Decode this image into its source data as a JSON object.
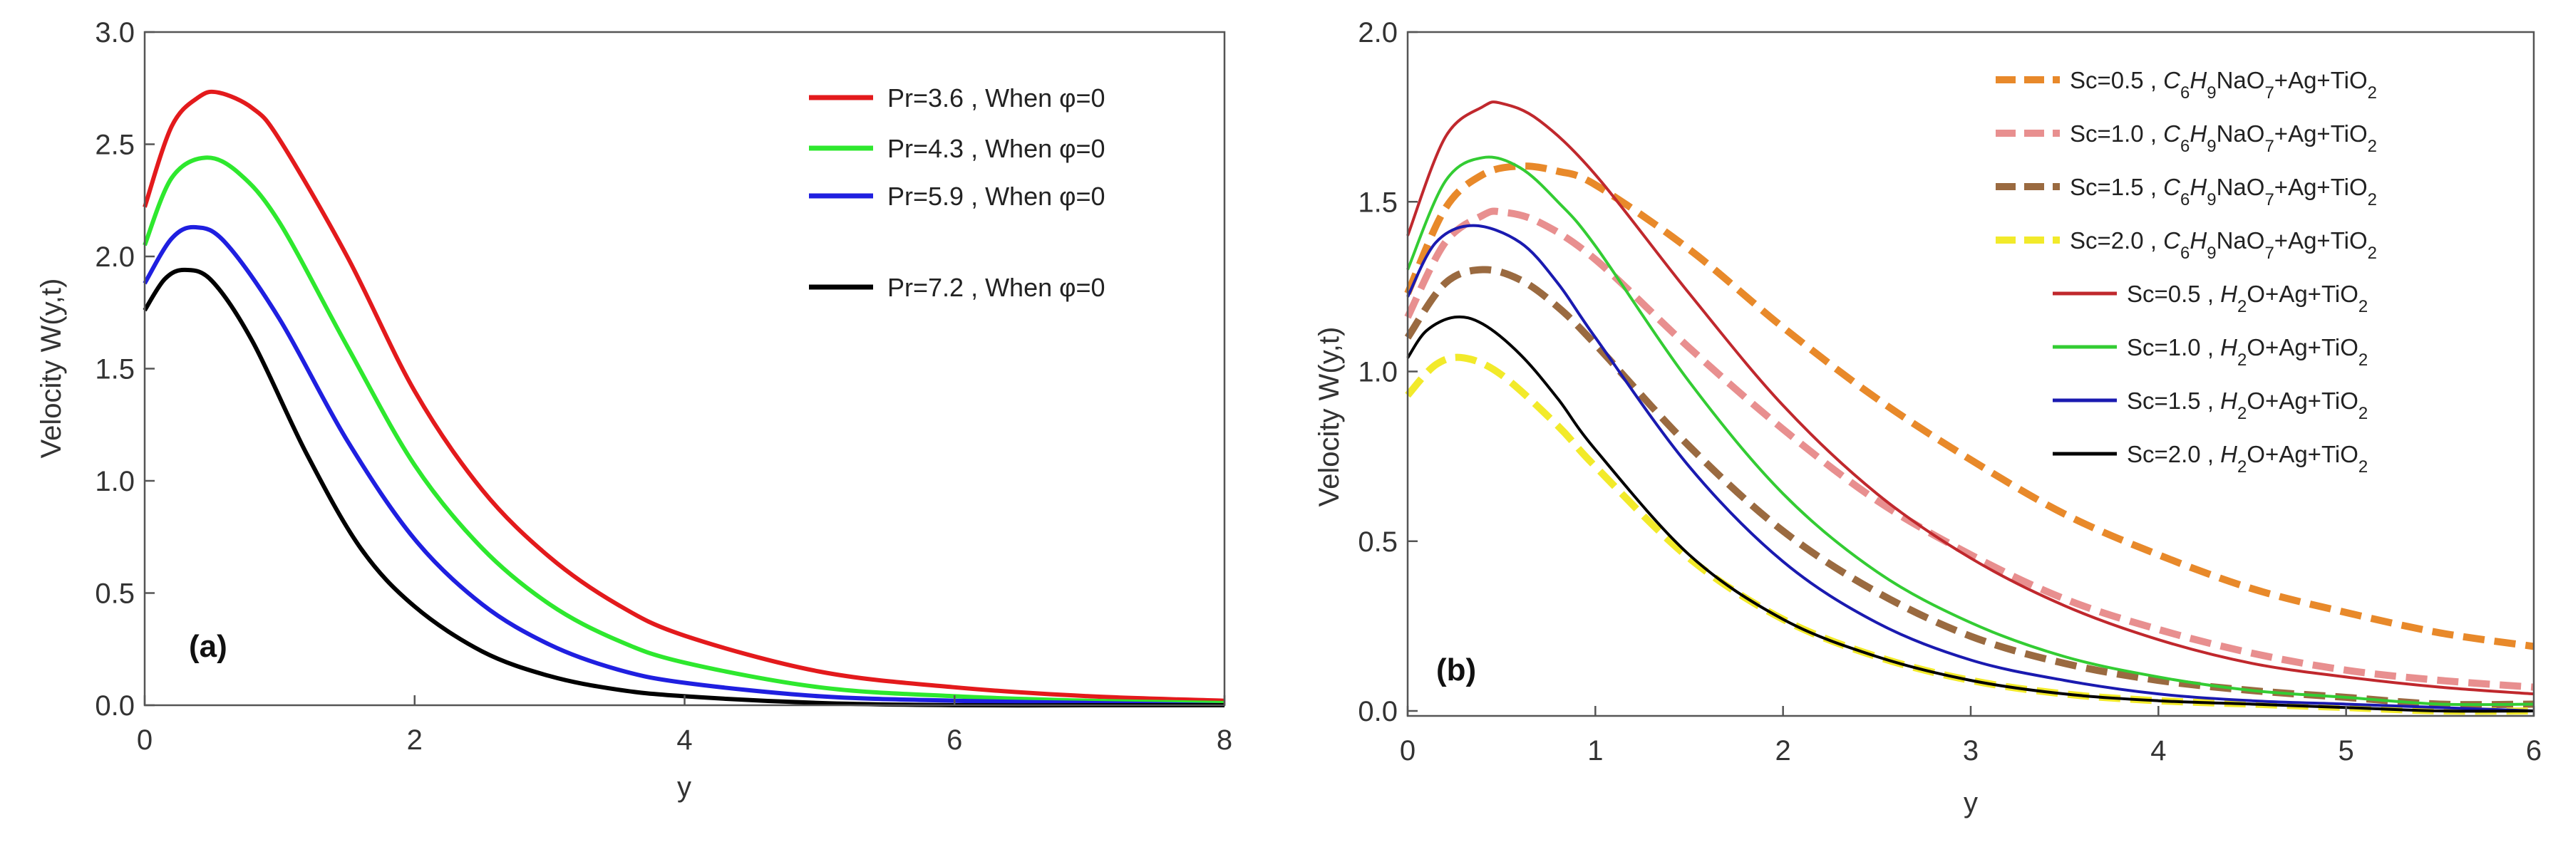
{
  "chart_data": [
    {
      "type": "line",
      "panel_label": "(a)",
      "xlabel": "y",
      "ylabel": "Velocity W(y,t)",
      "xlim": [
        0,
        8
      ],
      "ylim": [
        0,
        3
      ],
      "x_ticks": [
        "0",
        "2",
        "4",
        "6",
        "8"
      ],
      "y_ticks": [
        "0.0",
        "0.5",
        "1.0",
        "1.5",
        "2.0",
        "2.5",
        "3.0"
      ],
      "legend_position": "top-right",
      "series": [
        {
          "name": "Pr=3.6 , When φ=0",
          "color": "#e31a1c",
          "dashed": false,
          "x": [
            0,
            0.2,
            0.4,
            0.55,
            0.8,
            1.0,
            1.5,
            2.0,
            2.5,
            3.0,
            3.5,
            4.0,
            5.0,
            6.0,
            7.0,
            8.0
          ],
          "y": [
            2.22,
            2.58,
            2.71,
            2.73,
            2.66,
            2.52,
            2.0,
            1.4,
            0.96,
            0.66,
            0.45,
            0.31,
            0.15,
            0.08,
            0.04,
            0.02
          ]
        },
        {
          "name": "Pr=4.3 , When φ=0",
          "color": "#2ee82e",
          "dashed": false,
          "x": [
            0,
            0.2,
            0.45,
            0.7,
            1.0,
            1.5,
            2.0,
            2.5,
            3.0,
            3.5,
            4.0,
            5.0,
            6.0,
            7.0,
            8.0
          ],
          "y": [
            2.05,
            2.35,
            2.44,
            2.37,
            2.15,
            1.6,
            1.07,
            0.7,
            0.45,
            0.29,
            0.19,
            0.08,
            0.04,
            0.02,
            0.01
          ]
        },
        {
          "name": "Pr=5.9 , When φ=0",
          "color": "#1f1fe0",
          "dashed": false,
          "x": [
            0,
            0.2,
            0.38,
            0.6,
            1.0,
            1.5,
            2.0,
            2.5,
            3.0,
            3.5,
            4.0,
            5.0,
            6.0,
            7.0,
            8.0
          ],
          "y": [
            1.88,
            2.08,
            2.13,
            2.06,
            1.72,
            1.18,
            0.74,
            0.45,
            0.27,
            0.16,
            0.1,
            0.04,
            0.02,
            0.01,
            0.0
          ]
        },
        {
          "name": "Pr=7.2 , When φ=0",
          "color": "#000000",
          "dashed": false,
          "x": [
            0,
            0.15,
            0.3,
            0.5,
            0.8,
            1.2,
            1.6,
            2.0,
            2.5,
            3.0,
            3.5,
            4.0,
            5.0,
            6.0,
            7.0,
            8.0
          ],
          "y": [
            1.76,
            1.9,
            1.94,
            1.89,
            1.62,
            1.12,
            0.7,
            0.44,
            0.24,
            0.13,
            0.07,
            0.04,
            0.01,
            0.0,
            0.0,
            0.0
          ]
        }
      ]
    },
    {
      "type": "line",
      "panel_label": "(b)",
      "xlabel": "y",
      "ylabel": "Velocity W(y,t)",
      "xlim": [
        0,
        6
      ],
      "ylim": [
        0,
        2
      ],
      "x_ticks": [
        "0",
        "1",
        "2",
        "3",
        "4",
        "5",
        "6"
      ],
      "y_ticks": [
        "0.0",
        "0.5",
        "1.0",
        "1.5",
        "2.0"
      ],
      "legend_position": "top-right",
      "series": [
        {
          "name_prefix": "Sc=0.5 , ",
          "fluid": "C6H9NaO7+Ag+TiO2",
          "color": "#e8892a",
          "dashed": true,
          "x": [
            0,
            0.2,
            0.4,
            0.6,
            0.8,
            1.0,
            1.5,
            2.0,
            2.5,
            3.0,
            3.5,
            4.0,
            4.5,
            5.0,
            5.5,
            6.0
          ],
          "y": [
            1.23,
            1.48,
            1.58,
            1.605,
            1.59,
            1.55,
            1.36,
            1.13,
            0.92,
            0.74,
            0.58,
            0.46,
            0.36,
            0.29,
            0.23,
            0.19
          ]
        },
        {
          "name_prefix": "Sc=1.0 , ",
          "fluid": "C6H9NaO7+Ag+TiO2",
          "color": "#e88f8f",
          "dashed": true,
          "x": [
            0,
            0.2,
            0.4,
            0.5,
            0.7,
            1.0,
            1.5,
            2.0,
            2.5,
            3.0,
            3.5,
            4.0,
            4.5,
            5.0,
            5.5,
            6.0
          ],
          "y": [
            1.16,
            1.38,
            1.46,
            1.47,
            1.44,
            1.33,
            1.07,
            0.83,
            0.62,
            0.46,
            0.33,
            0.24,
            0.17,
            0.12,
            0.09,
            0.07
          ]
        },
        {
          "name_prefix": "Sc=1.5 , ",
          "fluid": "C6H9NaO7+Ag+TiO2",
          "color": "#9a6a40",
          "dashed": true,
          "x": [
            0,
            0.2,
            0.4,
            0.6,
            0.8,
            1.0,
            1.5,
            2.0,
            2.5,
            3.0,
            3.5,
            4.0,
            4.5,
            5.0,
            5.5,
            6.0
          ],
          "y": [
            1.1,
            1.26,
            1.3,
            1.27,
            1.19,
            1.08,
            0.78,
            0.53,
            0.35,
            0.22,
            0.14,
            0.09,
            0.06,
            0.04,
            0.02,
            0.02
          ]
        },
        {
          "name_prefix": "Sc=2.0 , ",
          "fluid": "C6H9NaO7+Ag+TiO2",
          "color": "#f2ea2a",
          "dashed": true,
          "x": [
            0,
            0.15,
            0.3,
            0.5,
            0.8,
            1.0,
            1.5,
            2.0,
            2.5,
            3.0,
            3.5,
            4.0,
            4.5,
            5.0,
            5.5,
            6.0
          ],
          "y": [
            0.93,
            1.02,
            1.04,
            0.99,
            0.84,
            0.72,
            0.45,
            0.27,
            0.16,
            0.09,
            0.05,
            0.03,
            0.02,
            0.01,
            0.0,
            0.0
          ]
        },
        {
          "name_prefix": "Sc=0.5 , ",
          "fluid": "H2O+Ag+TiO2",
          "color": "#c0282d",
          "dashed": false,
          "x": [
            0,
            0.2,
            0.4,
            0.5,
            0.7,
            1.0,
            1.5,
            2.0,
            2.5,
            3.0,
            3.5,
            4.0,
            4.5,
            5.0,
            5.5,
            6.0
          ],
          "y": [
            1.4,
            1.69,
            1.78,
            1.79,
            1.74,
            1.58,
            1.23,
            0.9,
            0.64,
            0.45,
            0.31,
            0.21,
            0.14,
            0.1,
            0.07,
            0.05
          ]
        },
        {
          "name_prefix": "Sc=1.0 , ",
          "fluid": "H2O+Ag+TiO2",
          "color": "#33cc33",
          "dashed": false,
          "x": [
            0,
            0.2,
            0.4,
            0.6,
            0.8,
            1.0,
            1.5,
            2.0,
            2.5,
            3.0,
            3.5,
            4.0,
            4.5,
            5.0,
            5.5,
            6.0
          ],
          "y": [
            1.3,
            1.56,
            1.63,
            1.6,
            1.5,
            1.37,
            0.97,
            0.64,
            0.41,
            0.26,
            0.16,
            0.1,
            0.06,
            0.04,
            0.02,
            0.02
          ]
        },
        {
          "name_prefix": "Sc=1.5 , ",
          "fluid": "H2O+Ag+TiO2",
          "color": "#1a1ab0",
          "dashed": false,
          "x": [
            0,
            0.15,
            0.35,
            0.6,
            0.8,
            1.0,
            1.5,
            2.0,
            2.5,
            3.0,
            3.5,
            4.0,
            4.5,
            5.0,
            5.5,
            6.0
          ],
          "y": [
            1.22,
            1.38,
            1.43,
            1.38,
            1.26,
            1.1,
            0.72,
            0.44,
            0.26,
            0.15,
            0.09,
            0.05,
            0.03,
            0.02,
            0.01,
            0.0
          ]
        },
        {
          "name_prefix": "Sc=2.0 , ",
          "fluid": "H2O+Ag+TiO2",
          "color": "#000000",
          "dashed": false,
          "x": [
            0,
            0.1,
            0.25,
            0.4,
            0.6,
            0.8,
            1.0,
            1.5,
            2.0,
            2.5,
            3.0,
            3.5,
            4.0,
            4.5,
            5.0,
            5.5,
            6.0
          ],
          "y": [
            1.04,
            1.12,
            1.16,
            1.14,
            1.05,
            0.92,
            0.77,
            0.46,
            0.27,
            0.16,
            0.09,
            0.05,
            0.03,
            0.02,
            0.01,
            0.0,
            0.0
          ]
        }
      ]
    }
  ]
}
